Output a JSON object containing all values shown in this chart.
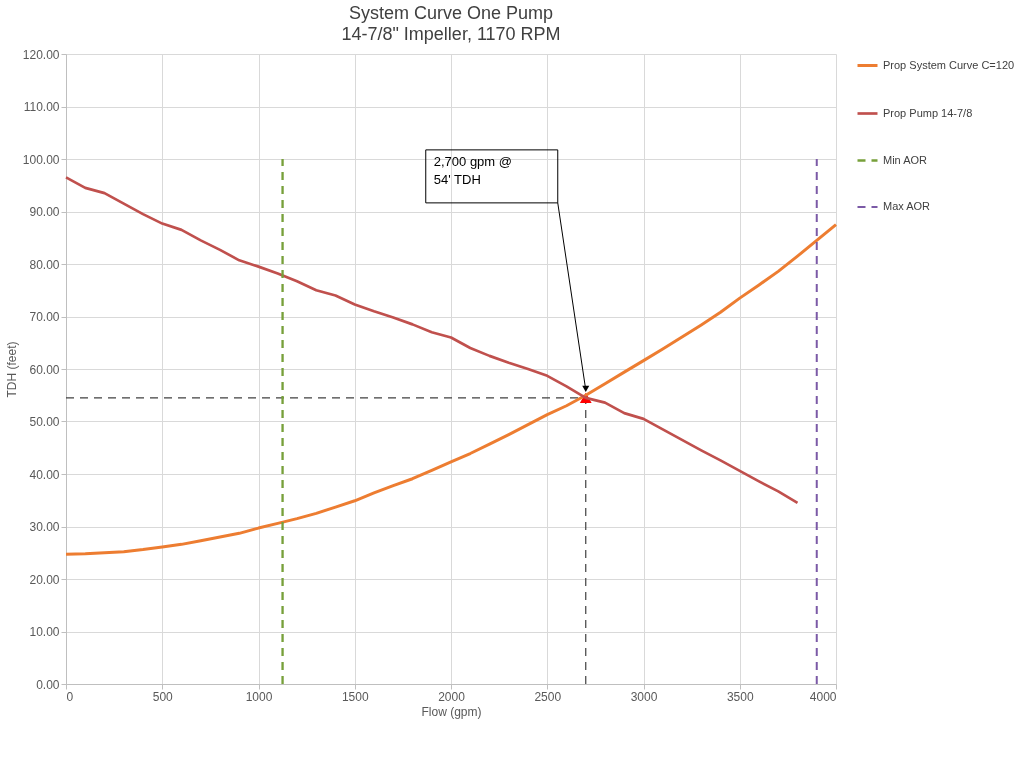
{
  "chart_data": {
    "type": "line",
    "title": "System Curve One Pump",
    "subtitle": "14-7/8\" Impeller, 1170 RPM",
    "xlabel": "Flow (gpm)",
    "ylabel": "TDH (feet)",
    "xlim": [
      0,
      4000
    ],
    "xticks": [
      0,
      500,
      1000,
      1500,
      2000,
      2500,
      3000,
      3500,
      4000
    ],
    "ylim": [
      0,
      120
    ],
    "yticks": [
      {
        "value": 0,
        "label": "0.00"
      },
      {
        "value": 10,
        "label": "10.00"
      },
      {
        "value": 20,
        "label": "20.00"
      },
      {
        "value": 30,
        "label": "30.00"
      },
      {
        "value": 40,
        "label": "40.00"
      },
      {
        "value": 50,
        "label": "50.00"
      },
      {
        "value": 60,
        "label": "60.00"
      },
      {
        "value": 70,
        "label": "70.00"
      },
      {
        "value": 80,
        "label": "80.00"
      },
      {
        "value": 90,
        "label": "90.00"
      },
      {
        "value": 100,
        "label": "100.00"
      },
      {
        "value": 110,
        "label": "110.00"
      },
      {
        "value": 120,
        "label": "120.00"
      }
    ],
    "grid": true,
    "legend": "right",
    "series": [
      {
        "name": "Prop System Curve C=120",
        "color": "#ed7d31",
        "line_style": "solid",
        "x": [
          0,
          100,
          200,
          300,
          400,
          500,
          600,
          700,
          800,
          900,
          1000,
          1100,
          1200,
          1300,
          1400,
          1500,
          1600,
          1700,
          1800,
          1900,
          2000,
          2100,
          2200,
          2300,
          2400,
          2500,
          2600,
          2700,
          2800,
          2900,
          3000,
          3100,
          3200,
          3300,
          3400,
          3500,
          3600,
          3700,
          3800,
          3900,
          4000
        ],
        "values": [
          24.7,
          24.8,
          25.0,
          25.2,
          25.6,
          26.1,
          26.6,
          27.3,
          28.0,
          28.7,
          29.7,
          30.6,
          31.5,
          32.5,
          33.7,
          34.9,
          36.4,
          37.8,
          39.1,
          40.7,
          42.3,
          43.9,
          45.7,
          47.5,
          49.4,
          51.3,
          53.0,
          55.0,
          57.2,
          59.4,
          61.6,
          63.8,
          66.1,
          68.4,
          70.8,
          73.5,
          76.0,
          78.6,
          81.5,
          84.5,
          87.5
        ]
      },
      {
        "name": "Prop Pump 14-7/8",
        "color": "#c0504d",
        "line_style": "solid",
        "x": [
          0,
          100,
          200,
          300,
          400,
          500,
          600,
          700,
          800,
          900,
          1000,
          1100,
          1200,
          1300,
          1400,
          1500,
          1600,
          1700,
          1800,
          1900,
          2000,
          2100,
          2200,
          2300,
          2400,
          2500,
          2600,
          2700,
          2800,
          2900,
          3000,
          3100,
          3200,
          3300,
          3400,
          3500,
          3600,
          3700,
          3800
        ],
        "values": [
          96.5,
          94.5,
          93.5,
          91.5,
          89.5,
          87.7,
          86.5,
          84.5,
          82.7,
          80.7,
          79.5,
          78.2,
          76.7,
          75.0,
          74.0,
          72.3,
          71.0,
          69.8,
          68.5,
          67.0,
          66.0,
          64.0,
          62.5,
          61.2,
          60.0,
          58.7,
          56.7,
          54.5,
          53.6,
          51.6,
          50.5,
          48.5,
          46.5,
          44.5,
          42.6,
          40.6,
          38.6,
          36.7,
          34.5
        ]
      },
      {
        "name": "Min AOR",
        "color": "#77a03a",
        "line_style": "dashed",
        "x": [
          1125,
          1125
        ],
        "values": [
          0,
          100
        ]
      },
      {
        "name": "Max AOR",
        "color": "#7b5aa6",
        "line_style": "dashed",
        "x": [
          3900,
          3900
        ],
        "values": [
          0,
          100
        ]
      },
      {
        "color": "#404040",
        "line_style": "dashed",
        "x": [
          0,
          2700
        ],
        "values": [
          54.5,
          54.5
        ]
      },
      {
        "color": "#404040",
        "line_style": "dashed",
        "x": [
          2700,
          2700
        ],
        "values": [
          0,
          54.5
        ]
      },
      {
        "type": "scatter",
        "marker": "triangle",
        "color": "#ff0000",
        "x": [
          2700
        ],
        "values": [
          54.5
        ]
      }
    ],
    "annotations": [
      "2,700 gpm @\n54' TDH"
    ]
  }
}
